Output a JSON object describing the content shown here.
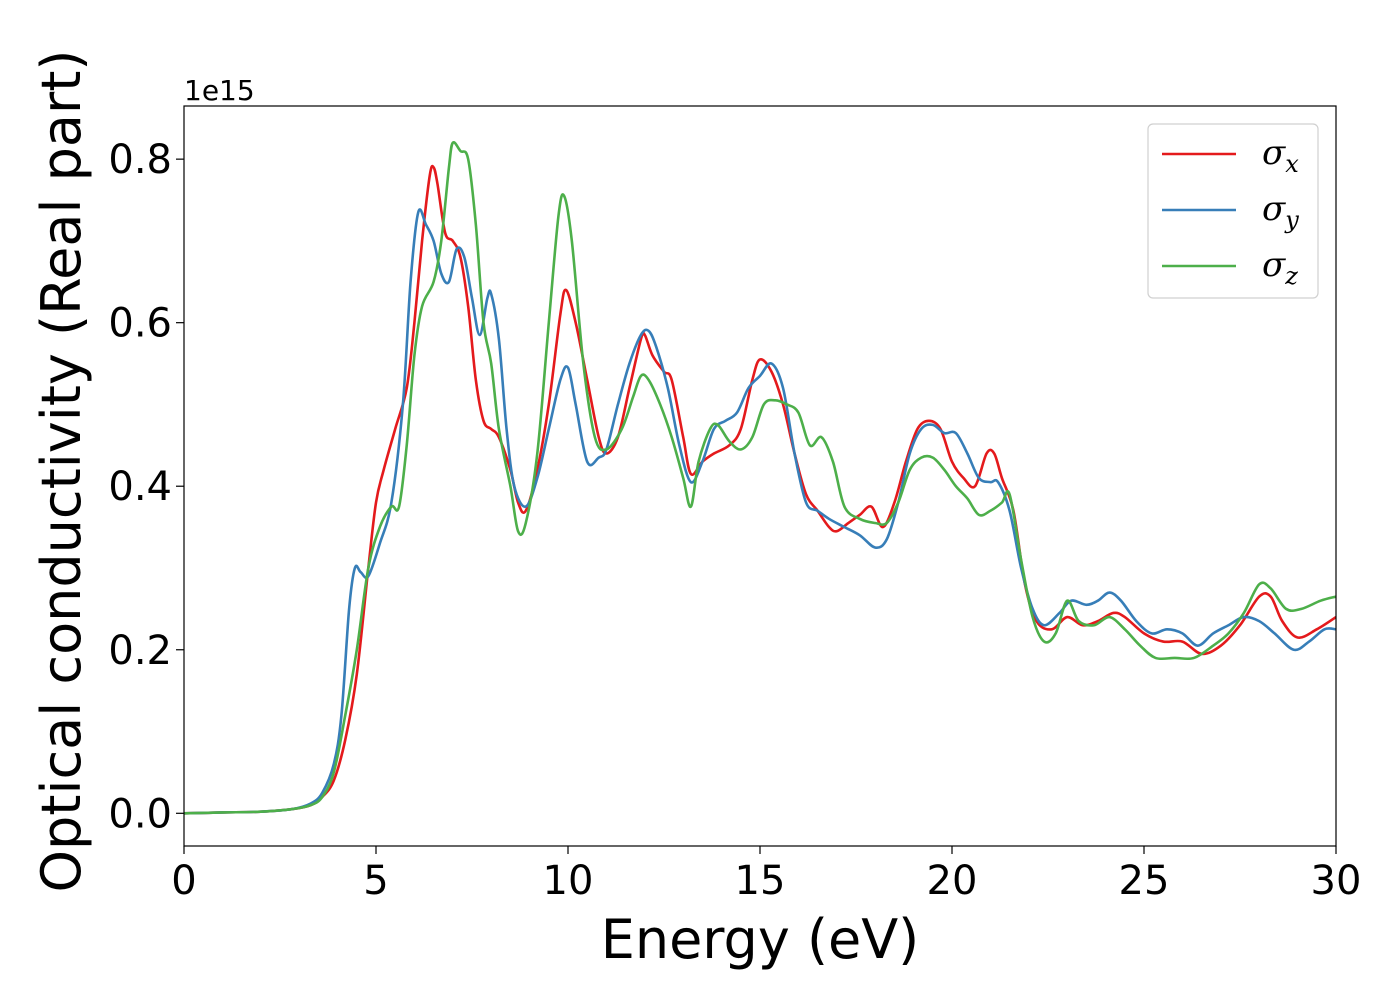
{
  "chart_data": {
    "type": "line",
    "title": "",
    "xlabel": "Energy (eV)",
    "ylabel": "Optical conductivity (Real part)",
    "y_offset_label": "1e15",
    "xlim": [
      0,
      30
    ],
    "ylim": [
      -0.04,
      0.865
    ],
    "x_ticks": [
      0,
      5,
      10,
      15,
      20,
      25,
      30
    ],
    "y_ticks": [
      0.0,
      0.2,
      0.4,
      0.6,
      0.8
    ],
    "x_tick_labels": [
      "0",
      "5",
      "10",
      "15",
      "20",
      "25",
      "30"
    ],
    "y_tick_labels": [
      "0.0",
      "0.2",
      "0.4",
      "0.6",
      "0.8"
    ],
    "grid": false,
    "legend_position": "top-right",
    "series": [
      {
        "name": "σx",
        "symbol": "σ",
        "subscript": "x",
        "color": "#e41a1c",
        "points": [
          [
            0,
            0
          ],
          [
            1,
            0.001
          ],
          [
            2,
            0.002
          ],
          [
            2.8,
            0.005
          ],
          [
            3.3,
            0.01
          ],
          [
            3.6,
            0.02
          ],
          [
            3.9,
            0.04
          ],
          [
            4.2,
            0.09
          ],
          [
            4.5,
            0.17
          ],
          [
            4.8,
            0.3
          ],
          [
            5.0,
            0.38
          ],
          [
            5.2,
            0.42
          ],
          [
            5.5,
            0.47
          ],
          [
            5.8,
            0.52
          ],
          [
            6.0,
            0.6
          ],
          [
            6.2,
            0.7
          ],
          [
            6.4,
            0.78
          ],
          [
            6.5,
            0.79
          ],
          [
            6.6,
            0.77
          ],
          [
            6.8,
            0.71
          ],
          [
            7.0,
            0.7
          ],
          [
            7.2,
            0.68
          ],
          [
            7.4,
            0.62
          ],
          [
            7.6,
            0.53
          ],
          [
            7.8,
            0.48
          ],
          [
            8.0,
            0.47
          ],
          [
            8.2,
            0.46
          ],
          [
            8.5,
            0.42
          ],
          [
            8.7,
            0.38
          ],
          [
            8.9,
            0.37
          ],
          [
            9.2,
            0.42
          ],
          [
            9.5,
            0.5
          ],
          [
            9.8,
            0.61
          ],
          [
            9.95,
            0.64
          ],
          [
            10.2,
            0.6
          ],
          [
            10.5,
            0.53
          ],
          [
            10.8,
            0.46
          ],
          [
            11.0,
            0.44
          ],
          [
            11.3,
            0.46
          ],
          [
            11.6,
            0.52
          ],
          [
            11.9,
            0.58
          ],
          [
            12.0,
            0.585
          ],
          [
            12.2,
            0.56
          ],
          [
            12.5,
            0.54
          ],
          [
            12.7,
            0.53
          ],
          [
            13.0,
            0.46
          ],
          [
            13.2,
            0.415
          ],
          [
            13.5,
            0.43
          ],
          [
            13.8,
            0.44
          ],
          [
            14.2,
            0.45
          ],
          [
            14.5,
            0.47
          ],
          [
            14.8,
            0.53
          ],
          [
            15.0,
            0.555
          ],
          [
            15.3,
            0.54
          ],
          [
            15.6,
            0.5
          ],
          [
            15.9,
            0.44
          ],
          [
            16.2,
            0.39
          ],
          [
            16.5,
            0.37
          ],
          [
            16.8,
            0.35
          ],
          [
            17.0,
            0.345
          ],
          [
            17.3,
            0.355
          ],
          [
            17.6,
            0.365
          ],
          [
            17.9,
            0.375
          ],
          [
            18.2,
            0.35
          ],
          [
            18.5,
            0.38
          ],
          [
            18.8,
            0.43
          ],
          [
            19.1,
            0.47
          ],
          [
            19.4,
            0.48
          ],
          [
            19.7,
            0.47
          ],
          [
            20.0,
            0.43
          ],
          [
            20.3,
            0.41
          ],
          [
            20.6,
            0.4
          ],
          [
            20.9,
            0.44
          ],
          [
            21.1,
            0.44
          ],
          [
            21.3,
            0.41
          ],
          [
            21.6,
            0.37
          ],
          [
            21.9,
            0.28
          ],
          [
            22.2,
            0.235
          ],
          [
            22.6,
            0.225
          ],
          [
            23.0,
            0.24
          ],
          [
            23.4,
            0.23
          ],
          [
            23.8,
            0.235
          ],
          [
            24.2,
            0.245
          ],
          [
            24.5,
            0.24
          ],
          [
            25.0,
            0.22
          ],
          [
            25.5,
            0.21
          ],
          [
            26.0,
            0.21
          ],
          [
            26.5,
            0.195
          ],
          [
            27.0,
            0.205
          ],
          [
            27.5,
            0.23
          ],
          [
            28.0,
            0.265
          ],
          [
            28.3,
            0.265
          ],
          [
            28.6,
            0.235
          ],
          [
            29.0,
            0.215
          ],
          [
            29.5,
            0.225
          ],
          [
            30.0,
            0.24
          ]
        ]
      },
      {
        "name": "σy",
        "symbol": "σ",
        "subscript": "y",
        "color": "#377eb8",
        "points": [
          [
            0,
            0
          ],
          [
            1,
            0.001
          ],
          [
            2,
            0.002
          ],
          [
            2.8,
            0.005
          ],
          [
            3.3,
            0.012
          ],
          [
            3.6,
            0.025
          ],
          [
            3.9,
            0.06
          ],
          [
            4.1,
            0.12
          ],
          [
            4.3,
            0.25
          ],
          [
            4.45,
            0.3
          ],
          [
            4.6,
            0.295
          ],
          [
            4.8,
            0.29
          ],
          [
            5.1,
            0.33
          ],
          [
            5.4,
            0.38
          ],
          [
            5.7,
            0.5
          ],
          [
            5.9,
            0.65
          ],
          [
            6.1,
            0.735
          ],
          [
            6.3,
            0.72
          ],
          [
            6.5,
            0.7
          ],
          [
            6.7,
            0.66
          ],
          [
            6.9,
            0.65
          ],
          [
            7.1,
            0.69
          ],
          [
            7.3,
            0.68
          ],
          [
            7.5,
            0.63
          ],
          [
            7.7,
            0.585
          ],
          [
            7.9,
            0.63
          ],
          [
            8.0,
            0.635
          ],
          [
            8.2,
            0.58
          ],
          [
            8.4,
            0.47
          ],
          [
            8.6,
            0.4
          ],
          [
            8.9,
            0.375
          ],
          [
            9.2,
            0.41
          ],
          [
            9.5,
            0.47
          ],
          [
            9.8,
            0.53
          ],
          [
            10.0,
            0.545
          ],
          [
            10.2,
            0.5
          ],
          [
            10.5,
            0.43
          ],
          [
            10.8,
            0.435
          ],
          [
            11.0,
            0.445
          ],
          [
            11.3,
            0.5
          ],
          [
            11.6,
            0.55
          ],
          [
            11.9,
            0.585
          ],
          [
            12.1,
            0.59
          ],
          [
            12.3,
            0.57
          ],
          [
            12.6,
            0.52
          ],
          [
            12.9,
            0.45
          ],
          [
            13.2,
            0.405
          ],
          [
            13.5,
            0.43
          ],
          [
            13.8,
            0.47
          ],
          [
            14.1,
            0.48
          ],
          [
            14.4,
            0.49
          ],
          [
            14.7,
            0.52
          ],
          [
            15.0,
            0.535
          ],
          [
            15.3,
            0.55
          ],
          [
            15.6,
            0.52
          ],
          [
            15.9,
            0.44
          ],
          [
            16.2,
            0.38
          ],
          [
            16.5,
            0.37
          ],
          [
            16.8,
            0.36
          ],
          [
            17.2,
            0.35
          ],
          [
            17.6,
            0.34
          ],
          [
            18.0,
            0.325
          ],
          [
            18.3,
            0.335
          ],
          [
            18.6,
            0.38
          ],
          [
            18.9,
            0.44
          ],
          [
            19.2,
            0.47
          ],
          [
            19.5,
            0.475
          ],
          [
            19.8,
            0.465
          ],
          [
            20.1,
            0.465
          ],
          [
            20.4,
            0.44
          ],
          [
            20.7,
            0.41
          ],
          [
            21.0,
            0.405
          ],
          [
            21.2,
            0.405
          ],
          [
            21.5,
            0.37
          ],
          [
            21.8,
            0.3
          ],
          [
            22.1,
            0.25
          ],
          [
            22.4,
            0.23
          ],
          [
            22.8,
            0.245
          ],
          [
            23.1,
            0.26
          ],
          [
            23.5,
            0.255
          ],
          [
            23.8,
            0.26
          ],
          [
            24.1,
            0.27
          ],
          [
            24.4,
            0.26
          ],
          [
            24.8,
            0.235
          ],
          [
            25.2,
            0.22
          ],
          [
            25.6,
            0.225
          ],
          [
            26.0,
            0.22
          ],
          [
            26.4,
            0.205
          ],
          [
            26.8,
            0.22
          ],
          [
            27.2,
            0.23
          ],
          [
            27.6,
            0.24
          ],
          [
            28.0,
            0.235
          ],
          [
            28.4,
            0.22
          ],
          [
            28.9,
            0.2
          ],
          [
            29.3,
            0.21
          ],
          [
            29.7,
            0.225
          ],
          [
            30.0,
            0.225
          ]
        ]
      },
      {
        "name": "σz",
        "symbol": "σ",
        "subscript": "z",
        "color": "#4daf4a",
        "points": [
          [
            0,
            0
          ],
          [
            1,
            0.001
          ],
          [
            2,
            0.002
          ],
          [
            2.8,
            0.005
          ],
          [
            3.3,
            0.01
          ],
          [
            3.6,
            0.02
          ],
          [
            3.9,
            0.05
          ],
          [
            4.2,
            0.12
          ],
          [
            4.5,
            0.2
          ],
          [
            4.8,
            0.3
          ],
          [
            5.1,
            0.35
          ],
          [
            5.4,
            0.375
          ],
          [
            5.6,
            0.375
          ],
          [
            5.8,
            0.45
          ],
          [
            6.0,
            0.56
          ],
          [
            6.2,
            0.62
          ],
          [
            6.5,
            0.65
          ],
          [
            6.7,
            0.7
          ],
          [
            6.9,
            0.79
          ],
          [
            7.0,
            0.82
          ],
          [
            7.2,
            0.81
          ],
          [
            7.4,
            0.8
          ],
          [
            7.6,
            0.72
          ],
          [
            7.8,
            0.6
          ],
          [
            8.0,
            0.55
          ],
          [
            8.2,
            0.47
          ],
          [
            8.5,
            0.4
          ],
          [
            8.7,
            0.345
          ],
          [
            8.9,
            0.355
          ],
          [
            9.2,
            0.44
          ],
          [
            9.5,
            0.6
          ],
          [
            9.75,
            0.73
          ],
          [
            9.9,
            0.755
          ],
          [
            10.1,
            0.7
          ],
          [
            10.4,
            0.55
          ],
          [
            10.7,
            0.46
          ],
          [
            11.0,
            0.445
          ],
          [
            11.4,
            0.47
          ],
          [
            11.7,
            0.51
          ],
          [
            11.9,
            0.535
          ],
          [
            12.1,
            0.53
          ],
          [
            12.4,
            0.5
          ],
          [
            12.7,
            0.46
          ],
          [
            13.0,
            0.41
          ],
          [
            13.2,
            0.375
          ],
          [
            13.4,
            0.43
          ],
          [
            13.7,
            0.47
          ],
          [
            13.9,
            0.475
          ],
          [
            14.2,
            0.455
          ],
          [
            14.5,
            0.445
          ],
          [
            14.8,
            0.46
          ],
          [
            15.1,
            0.5
          ],
          [
            15.4,
            0.505
          ],
          [
            15.7,
            0.5
          ],
          [
            16.0,
            0.49
          ],
          [
            16.3,
            0.45
          ],
          [
            16.6,
            0.46
          ],
          [
            16.9,
            0.43
          ],
          [
            17.2,
            0.375
          ],
          [
            17.6,
            0.36
          ],
          [
            18.0,
            0.355
          ],
          [
            18.3,
            0.355
          ],
          [
            18.6,
            0.38
          ],
          [
            18.9,
            0.42
          ],
          [
            19.2,
            0.435
          ],
          [
            19.5,
            0.435
          ],
          [
            19.8,
            0.42
          ],
          [
            20.1,
            0.4
          ],
          [
            20.4,
            0.385
          ],
          [
            20.7,
            0.365
          ],
          [
            21.0,
            0.37
          ],
          [
            21.3,
            0.38
          ],
          [
            21.5,
            0.39
          ],
          [
            21.8,
            0.31
          ],
          [
            22.1,
            0.24
          ],
          [
            22.4,
            0.21
          ],
          [
            22.7,
            0.22
          ],
          [
            23.0,
            0.26
          ],
          [
            23.3,
            0.235
          ],
          [
            23.7,
            0.23
          ],
          [
            24.1,
            0.24
          ],
          [
            24.5,
            0.225
          ],
          [
            24.9,
            0.205
          ],
          [
            25.3,
            0.19
          ],
          [
            25.8,
            0.19
          ],
          [
            26.3,
            0.19
          ],
          [
            26.8,
            0.205
          ],
          [
            27.2,
            0.22
          ],
          [
            27.6,
            0.245
          ],
          [
            28.0,
            0.28
          ],
          [
            28.3,
            0.275
          ],
          [
            28.7,
            0.25
          ],
          [
            29.1,
            0.25
          ],
          [
            29.6,
            0.26
          ],
          [
            30.0,
            0.265
          ]
        ]
      }
    ]
  }
}
